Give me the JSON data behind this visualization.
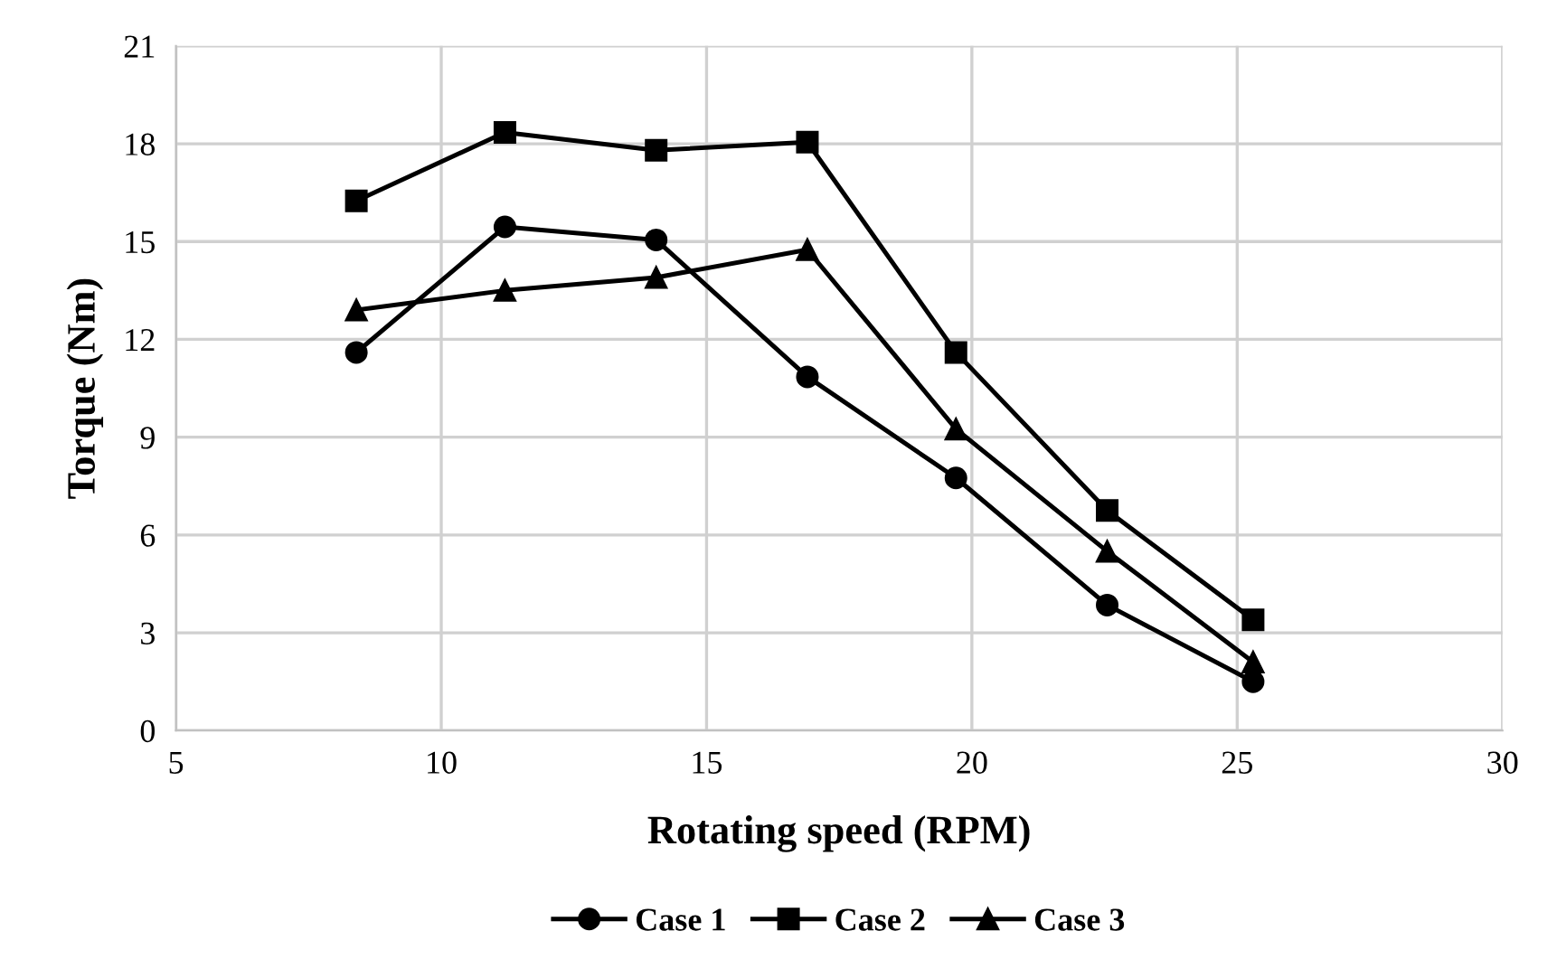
{
  "chart_data": {
    "type": "line",
    "xlabel": "Rotating speed (RPM)",
    "ylabel": "Torque (Nm)",
    "xlim": [
      5,
      30
    ],
    "xticks": [
      5,
      10,
      15,
      20,
      25,
      30
    ],
    "ylim": [
      0,
      21
    ],
    "yticks": [
      0,
      3,
      6,
      9,
      12,
      15,
      18,
      21
    ],
    "grid": true,
    "legend": "bottom",
    "line_style": "solid",
    "series": [
      {
        "name": "Case 1",
        "color": "#000000",
        "marker": "circle",
        "x": [
          8.4,
          11.2,
          14.05,
          16.9,
          19.7,
          22.55,
          25.3
        ],
        "values": [
          11.6,
          15.45,
          15.05,
          10.85,
          7.75,
          3.85,
          1.5
        ]
      },
      {
        "name": "Case 2",
        "color": "#000000",
        "marker": "square",
        "x": [
          8.4,
          11.2,
          14.05,
          16.9,
          19.7,
          22.55,
          25.3
        ],
        "values": [
          16.25,
          18.35,
          17.8,
          18.05,
          11.6,
          6.75,
          3.4
        ]
      },
      {
        "name": "Case 3",
        "color": "#000000",
        "marker": "triangle",
        "x": [
          8.4,
          11.2,
          14.05,
          16.9,
          19.7,
          22.55,
          25.3
        ],
        "values": [
          12.9,
          13.5,
          13.9,
          14.75,
          9.25,
          5.5,
          2.1
        ]
      }
    ]
  }
}
